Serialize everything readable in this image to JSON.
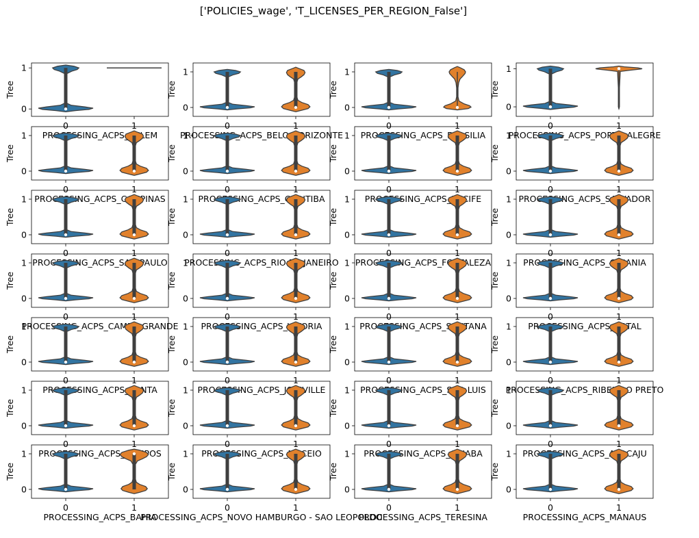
{
  "figure_title": "['POLICIES_wage', 'T_LICENSES_PER_REGION_False']",
  "colors": {
    "class0": "#3274a1",
    "class1": "#e1812c",
    "box": "#3f3f3f",
    "median": "#ffffff"
  },
  "chart_data": {
    "type": "violin",
    "grid_rows": 7,
    "grid_cols": 4,
    "ylabel": "Tree",
    "x_ticks": [
      "0",
      "1"
    ],
    "y_ticks": [
      0,
      1
    ],
    "subplots": [
      {
        "xlabel": "PROCESSING_ACPS_BELEM",
        "ylim": [
          -0.18,
          1.12
        ],
        "class1_kind": "flat"
      },
      {
        "xlabel": "PROCESSING_ACPS_BELO HORIZONTE",
        "ylim": [
          -0.25,
          1.25
        ],
        "class1_kind": "bimodal"
      },
      {
        "xlabel": "PROCESSING_ACPS_BRASILIA",
        "ylim": [
          -0.25,
          1.25
        ],
        "class1_kind": "slim"
      },
      {
        "xlabel": "PROCESSING_ACPS_PORTO ALEGRE",
        "ylim": [
          -0.25,
          1.15
        ],
        "class1_kind": "top"
      },
      {
        "xlabel": "PROCESSING_ACPS_CAMPINAS",
        "ylim": [
          -0.25,
          1.25
        ],
        "class1_kind": "bimodal"
      },
      {
        "xlabel": "PROCESSING_ACPS_CURITIBA",
        "ylim": [
          -0.25,
          1.25
        ],
        "class1_kind": "bimodal"
      },
      {
        "xlabel": "PROCESSING_ACPS_RECIFE",
        "ylim": [
          -0.25,
          1.25
        ],
        "class1_kind": "bimodal"
      },
      {
        "xlabel": "PROCESSING_ACPS_SALVADOR",
        "ylim": [
          -0.25,
          1.25
        ],
        "class1_kind": "bimodal"
      },
      {
        "xlabel": "PROCESSING_ACPS_SAO PAULO",
        "ylim": [
          -0.25,
          1.25
        ],
        "class1_kind": "bimodal"
      },
      {
        "xlabel": "PROCESSING_ACPS_RIO DE JANEIRO",
        "ylim": [
          -0.25,
          1.25
        ],
        "class1_kind": "bimodal"
      },
      {
        "xlabel": "PROCESSING_ACPS_FORTALEZA",
        "ylim": [
          -0.25,
          1.25
        ],
        "class1_kind": "bimodal"
      },
      {
        "xlabel": "PROCESSING_ACPS_GOIANIA",
        "ylim": [
          -0.25,
          1.25
        ],
        "class1_kind": "bimodal"
      },
      {
        "xlabel": "PROCESSING_ACPS_CAMPO GRANDE",
        "ylim": [
          -0.25,
          1.25
        ],
        "class1_kind": "bimodal"
      },
      {
        "xlabel": "PROCESSING_ACPS_VITORIA",
        "ylim": [
          -0.25,
          1.25
        ],
        "class1_kind": "bimodal"
      },
      {
        "xlabel": "PROCESSING_ACPS_SANTANA",
        "ylim": [
          -0.25,
          1.25
        ],
        "class1_kind": "bimodal"
      },
      {
        "xlabel": "PROCESSING_ACPS_NATAL",
        "ylim": [
          -0.25,
          1.25
        ],
        "class1_kind": "bimodal"
      },
      {
        "xlabel": "PROCESSING_ACPS_SANTA",
        "ylim": [
          -0.25,
          1.25
        ],
        "class1_kind": "bimodal"
      },
      {
        "xlabel": "PROCESSING_ACPS_JOINVILLE",
        "ylim": [
          -0.25,
          1.25
        ],
        "class1_kind": "bimodal"
      },
      {
        "xlabel": "PROCESSING_ACPS_SAO LUIS",
        "ylim": [
          -0.25,
          1.25
        ],
        "class1_kind": "bimodal"
      },
      {
        "xlabel": "PROCESSING_ACPS_RIBEIRAO PRETO",
        "ylim": [
          -0.25,
          1.25
        ],
        "class1_kind": "bimodal"
      },
      {
        "xlabel": "PROCESSING_ACPS_CAMPOS",
        "ylim": [
          -0.25,
          1.25
        ],
        "class1_kind": "bimodal"
      },
      {
        "xlabel": "PROCESSING_ACPS_MACEIO",
        "ylim": [
          -0.25,
          1.25
        ],
        "class1_kind": "bimodal"
      },
      {
        "xlabel": "PROCESSING_ACPS_CUIABA",
        "ylim": [
          -0.25,
          1.25
        ],
        "class1_kind": "bimodal"
      },
      {
        "xlabel": "PROCESSING_ACPS_ARACAJU",
        "ylim": [
          -0.25,
          1.25
        ],
        "class1_kind": "bimodal"
      },
      {
        "xlabel": "PROCESSING_ACPS_BAHIA",
        "ylim": [
          -0.25,
          1.25
        ],
        "class1_kind": "wide"
      },
      {
        "xlabel": "PROCESSING_ACPS_NOVO HAMBURGO - SAO LEOPOLDO",
        "ylim": [
          -0.25,
          1.25
        ],
        "class1_kind": "bimodal"
      },
      {
        "xlabel": "PROCESSING_ACPS_TERESINA",
        "ylim": [
          -0.25,
          1.25
        ],
        "class1_kind": "bimodal"
      },
      {
        "xlabel": "PROCESSING_ACPS_MANAUS",
        "ylim": [
          -0.25,
          1.25
        ],
        "class1_kind": "bimodal"
      }
    ]
  }
}
